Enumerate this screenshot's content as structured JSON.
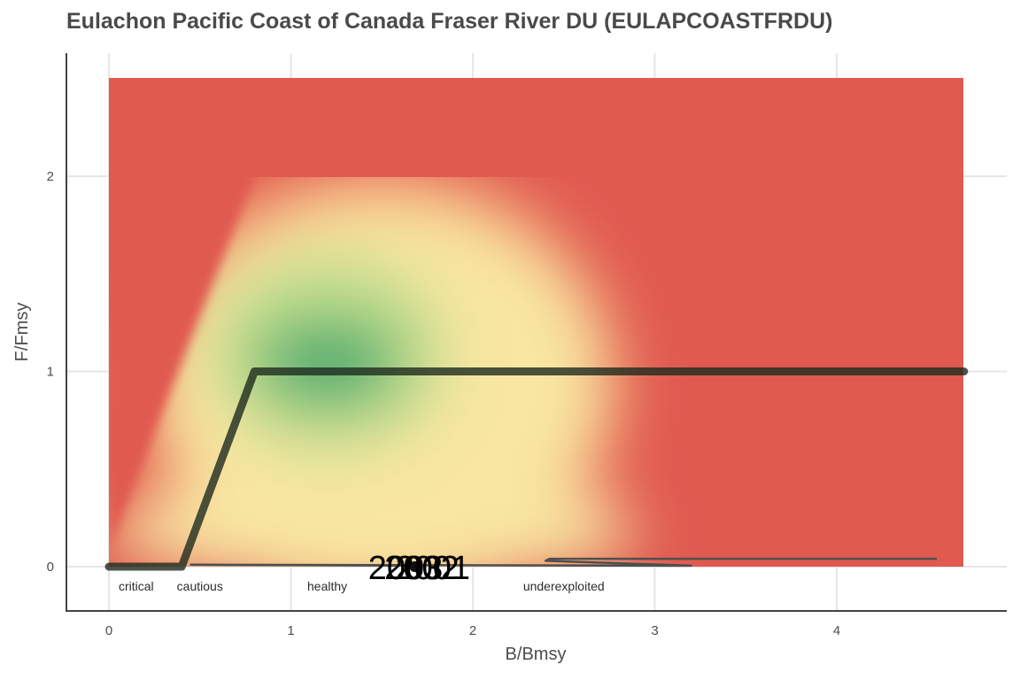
{
  "colors": {
    "background_red": "#e05a50",
    "optimal_green": "#41a870",
    "pale_yellow": "#f8e6a2",
    "hcr_line": "#1e2a1e",
    "trajectory": "#4f4f4f",
    "grid": "#e6e6e6",
    "axis": "#444444"
  },
  "chart_data": {
    "type": "line",
    "title": "Eulachon Pacific Coast of Canada Fraser River DU (EULAPCOASTFRDU)",
    "xlabel": "B/Bmsy",
    "ylabel": "F/Fmsy",
    "xlim": [
      0,
      4.7
    ],
    "ylim": [
      0,
      2.5
    ],
    "x_ticks": [
      0,
      1,
      2,
      3,
      4
    ],
    "y_ticks": [
      0,
      1,
      2
    ],
    "grid": true,
    "zone_labels": [
      {
        "text": "critical",
        "x": 0.15
      },
      {
        "text": "cautious",
        "x": 0.5
      },
      {
        "text": "healthy",
        "x": 1.2
      },
      {
        "text": "underexploited",
        "x": 2.5
      }
    ],
    "harvest_control_rule": {
      "x": [
        0,
        0.4,
        0.8,
        4.7
      ],
      "y": [
        0,
        0,
        1,
        1
      ]
    },
    "trajectory": {
      "x": [
        4.55,
        2.42,
        2.4,
        3.2,
        0.45,
        1.68
      ],
      "y": [
        0.04,
        0.04,
        0.03,
        0.005,
        0.01,
        0.005
      ]
    },
    "year_labels": [
      {
        "text": "2003",
        "x": 1.63,
        "y": 0
      },
      {
        "text": "2002",
        "x": 1.72,
        "y": 0
      },
      {
        "text": "2001",
        "x": 1.78,
        "y": 0
      }
    ],
    "current_point": {
      "x": 1.68,
      "y": 0
    }
  }
}
